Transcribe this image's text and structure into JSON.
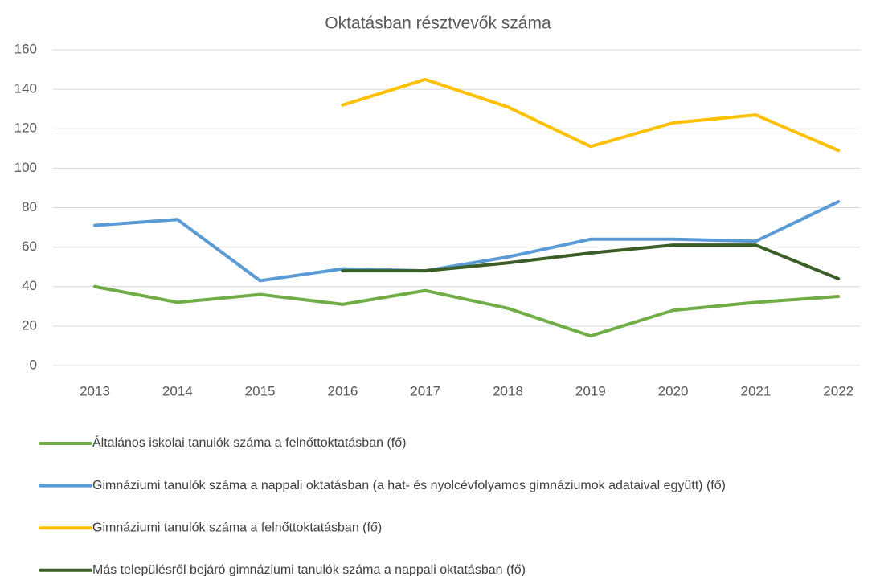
{
  "chart_data": {
    "type": "line",
    "title": "Oktatásban résztvevők száma",
    "categories": [
      "2013",
      "2014",
      "2015",
      "2016",
      "2017",
      "2018",
      "2019",
      "2020",
      "2021",
      "2022"
    ],
    "series": [
      {
        "name": "Általános iskolai tanulók száma a felnőttoktatásban (fő)",
        "color": "#70ad47",
        "values": [
          40,
          32,
          36,
          31,
          38,
          29,
          15,
          28,
          32,
          35
        ]
      },
      {
        "name": "Gimnáziumi tanulók száma a nappali oktatásban (a hat- és nyolcévfolyamos gimnáziumok adataival együtt) (fő)",
        "color": "#5b9bd5",
        "values": [
          71,
          74,
          43,
          49,
          48,
          55,
          64,
          64,
          63,
          83
        ]
      },
      {
        "name": "Gimnáziumi tanulók száma a felnőttoktatásban (fő)",
        "color": "#ffc000",
        "values": [
          null,
          null,
          null,
          132,
          145,
          131,
          111,
          123,
          127,
          109
        ]
      },
      {
        "name": "Más településről bejáró gimnáziumi tanulók száma a nappali oktatásban (fő)",
        "color": "#3b5e27",
        "values": [
          null,
          null,
          null,
          48,
          48,
          52,
          57,
          61,
          61,
          44
        ]
      }
    ],
    "ylim": [
      0,
      160
    ],
    "yticks": [
      0,
      20,
      40,
      60,
      80,
      100,
      120,
      140,
      160
    ],
    "grid": true,
    "legend": "bottom"
  }
}
